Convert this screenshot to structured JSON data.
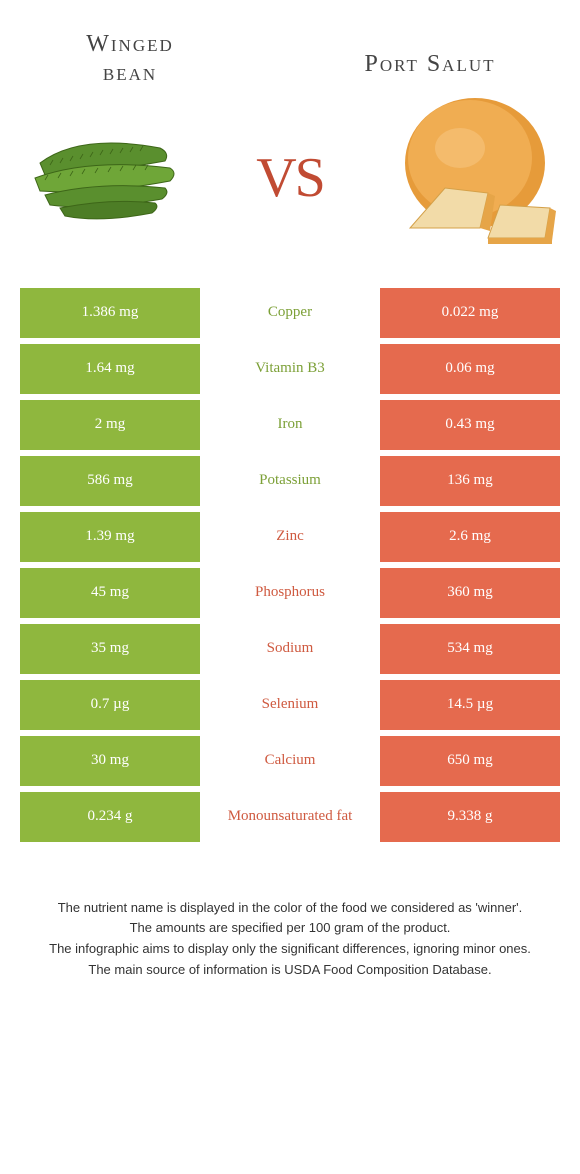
{
  "colors": {
    "green": "#8fb73e",
    "orange": "#e56a4e",
    "nutrient_green": "#7ca037",
    "nutrient_orange": "#cf5a40",
    "vs": "#c14b33",
    "title": "#444444",
    "footer": "#333333",
    "bg": "#ffffff"
  },
  "left_food": {
    "title_line1": "Winged",
    "title_line2": "bean"
  },
  "right_food": {
    "title": "Port Salut"
  },
  "vs_label": "VS",
  "rows": [
    {
      "nutrient": "Copper",
      "left": "1.386 mg",
      "right": "0.022 mg",
      "winner": "left"
    },
    {
      "nutrient": "Vitamin B3",
      "left": "1.64 mg",
      "right": "0.06 mg",
      "winner": "left"
    },
    {
      "nutrient": "Iron",
      "left": "2 mg",
      "right": "0.43 mg",
      "winner": "left"
    },
    {
      "nutrient": "Potassium",
      "left": "586 mg",
      "right": "136 mg",
      "winner": "left"
    },
    {
      "nutrient": "Zinc",
      "left": "1.39 mg",
      "right": "2.6 mg",
      "winner": "right"
    },
    {
      "nutrient": "Phosphorus",
      "left": "45 mg",
      "right": "360 mg",
      "winner": "right"
    },
    {
      "nutrient": "Sodium",
      "left": "35 mg",
      "right": "534 mg",
      "winner": "right"
    },
    {
      "nutrient": "Selenium",
      "left": "0.7 µg",
      "right": "14.5 µg",
      "winner": "right"
    },
    {
      "nutrient": "Calcium",
      "left": "30 mg",
      "right": "650 mg",
      "winner": "right"
    },
    {
      "nutrient": "Monounsaturated fat",
      "left": "0.234 g",
      "right": "9.338 g",
      "winner": "right"
    }
  ],
  "footer_lines": [
    "The nutrient name is displayed in the color of the food we considered as 'winner'.",
    "The amounts are specified per 100 gram of the product.",
    "The infographic aims to display only the significant differences, ignoring minor ones.",
    "The main source of information is USDA Food Composition Database."
  ]
}
